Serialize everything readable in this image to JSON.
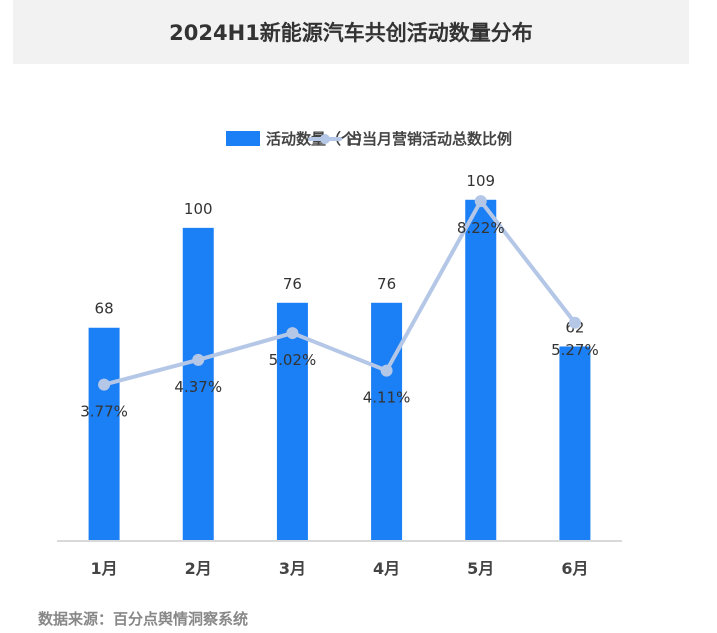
{
  "chart_data": {
    "type": "bar+line",
    "title": "2024H1新能源汽车共创活动数量分布",
    "categories": [
      "1月",
      "2月",
      "3月",
      "4月",
      "5月",
      "6月"
    ],
    "series": [
      {
        "name": "活动数量（个）",
        "type": "bar",
        "axis": "left",
        "values": [
          68,
          100,
          76,
          76,
          109,
          62
        ],
        "labels": [
          "68",
          "100",
          "76",
          "76",
          "109",
          "62"
        ],
        "color": "#1b7ff5"
      },
      {
        "name": "占当月营销活动总数比例",
        "type": "line",
        "axis": "right",
        "values": [
          3.77,
          4.37,
          5.02,
          4.11,
          8.22,
          5.27
        ],
        "labels": [
          "3.77%",
          "4.37%",
          "5.02%",
          "4.11%",
          "8.22%",
          "5.27%"
        ],
        "color": "#b4c7e7"
      }
    ],
    "ylim": [
      0,
      173
    ],
    "y2lim": [
      0,
      13.1
    ],
    "grid": false,
    "legend": "top-right",
    "source": "数据来源：百分点舆情洞察系统"
  }
}
